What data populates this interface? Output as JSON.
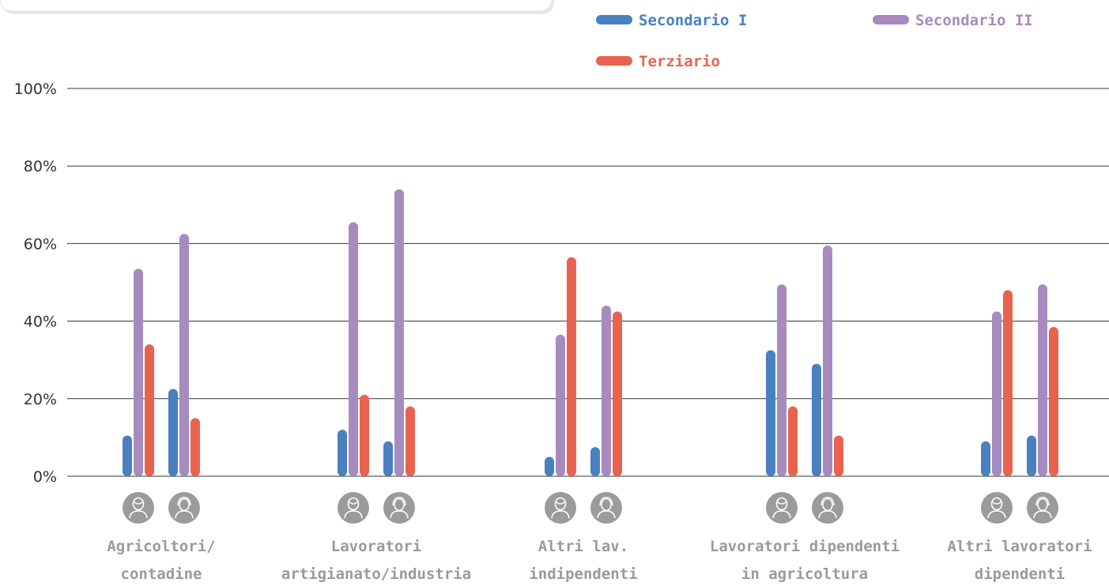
{
  "chart_data": {
    "type": "bar",
    "ylim": [
      0,
      100
    ],
    "y_ticks": [
      "0%",
      "20%",
      "40%",
      "60%",
      "80%",
      "100%"
    ],
    "legend": [
      {
        "name": "Secondario I",
        "color": "#4a80c0"
      },
      {
        "name": "Secondario II",
        "color": "#a78bbf"
      },
      {
        "name": "Terziario",
        "color": "#e8634f"
      }
    ],
    "group_icons": [
      "female-person-icon",
      "male-person-icon"
    ],
    "categories": [
      {
        "label_lines": [
          "Agricoltori/",
          "contadine"
        ],
        "groups": [
          {
            "icon": "female-person-icon",
            "values": [
              10.5,
              53.5,
              34
            ]
          },
          {
            "icon": "male-person-icon",
            "values": [
              22.5,
              62.5,
              15
            ]
          }
        ]
      },
      {
        "label_lines": [
          "Lavoratori",
          "artigianato/industria"
        ],
        "groups": [
          {
            "icon": "female-person-icon",
            "values": [
              12,
              65.5,
              21
            ]
          },
          {
            "icon": "male-person-icon",
            "values": [
              9,
              74,
              18
            ]
          }
        ]
      },
      {
        "label_lines": [
          "Altri lav.",
          "indipendenti"
        ],
        "groups": [
          {
            "icon": "female-person-icon",
            "values": [
              5,
              36.5,
              56.5
            ]
          },
          {
            "icon": "male-person-icon",
            "values": [
              7.5,
              44,
              42.5
            ]
          }
        ]
      },
      {
        "label_lines": [
          "Lavoratori dipendenti",
          "in agricoltura"
        ],
        "groups": [
          {
            "icon": "female-person-icon",
            "values": [
              32.5,
              49.5,
              18
            ]
          },
          {
            "icon": "male-person-icon",
            "values": [
              29,
              59.5,
              10.5
            ]
          }
        ]
      },
      {
        "label_lines": [
          "Altri lavoratori",
          "dipendenti"
        ],
        "groups": [
          {
            "icon": "female-person-icon",
            "values": [
              9,
              42.5,
              48
            ]
          },
          {
            "icon": "male-person-icon",
            "values": [
              10.5,
              49.5,
              38.5
            ]
          }
        ]
      }
    ]
  }
}
